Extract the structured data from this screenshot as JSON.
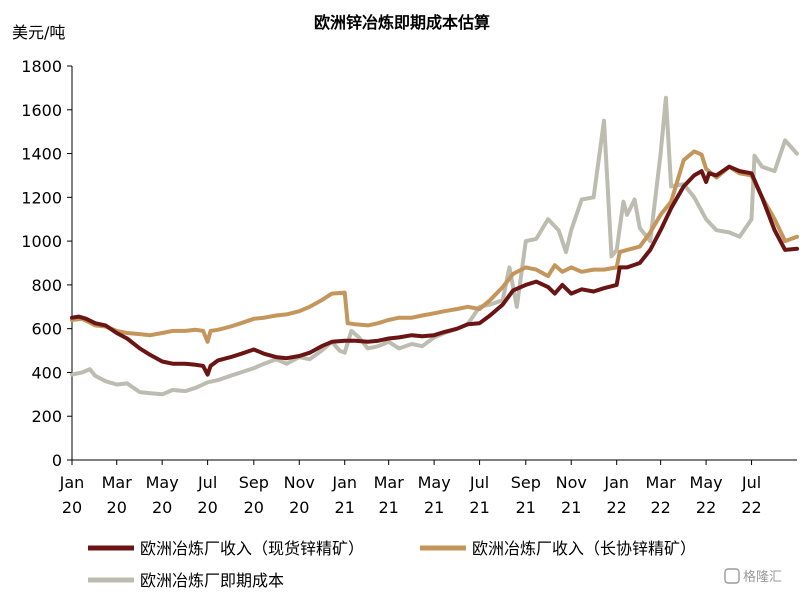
{
  "chart_data": {
    "type": "line",
    "title": "欧洲锌冶炼即期成本估算",
    "ylabel": "美元/吨",
    "ylim": [
      0,
      1800
    ],
    "yticks": [
      0,
      200,
      400,
      600,
      800,
      1000,
      1200,
      1400,
      1600,
      1800
    ],
    "xlim": [
      "2020-01-01",
      "2022-08-31"
    ],
    "xticks": [
      {
        "date": "2020-01-01",
        "month": "Jan",
        "year": "20"
      },
      {
        "date": "2020-03-01",
        "month": "Mar",
        "year": "20"
      },
      {
        "date": "2020-05-01",
        "month": "May",
        "year": "20"
      },
      {
        "date": "2020-07-01",
        "month": "Jul",
        "year": "20"
      },
      {
        "date": "2020-09-01",
        "month": "Sep",
        "year": "20"
      },
      {
        "date": "2020-11-01",
        "month": "Nov",
        "year": "20"
      },
      {
        "date": "2021-01-01",
        "month": "Jan",
        "year": "21"
      },
      {
        "date": "2021-03-01",
        "month": "Mar",
        "year": "21"
      },
      {
        "date": "2021-05-01",
        "month": "May",
        "year": "21"
      },
      {
        "date": "2021-07-01",
        "month": "Jul",
        "year": "21"
      },
      {
        "date": "2021-09-01",
        "month": "Sep",
        "year": "21"
      },
      {
        "date": "2021-11-01",
        "month": "Nov",
        "year": "21"
      },
      {
        "date": "2022-01-01",
        "month": "Jan",
        "year": "22"
      },
      {
        "date": "2022-03-01",
        "month": "Mar",
        "year": "22"
      },
      {
        "date": "2022-05-01",
        "month": "May",
        "year": "22"
      },
      {
        "date": "2022-07-01",
        "month": "Jul",
        "year": "22"
      }
    ],
    "grid": false,
    "legend_position": "bottom",
    "series": [
      {
        "name": "欧洲冶炼厂收入（现货锌精矿）",
        "color": "#6b1414",
        "points": [
          [
            "2020-01-01",
            650
          ],
          [
            "2020-01-10",
            655
          ],
          [
            "2020-01-20",
            645
          ],
          [
            "2020-02-01",
            625
          ],
          [
            "2020-02-15",
            615
          ],
          [
            "2020-03-01",
            580
          ],
          [
            "2020-03-15",
            555
          ],
          [
            "2020-04-01",
            510
          ],
          [
            "2020-04-15",
            480
          ],
          [
            "2020-05-01",
            450
          ],
          [
            "2020-05-15",
            440
          ],
          [
            "2020-06-01",
            440
          ],
          [
            "2020-06-15",
            435
          ],
          [
            "2020-06-25",
            430
          ],
          [
            "2020-07-01",
            390
          ],
          [
            "2020-07-05",
            430
          ],
          [
            "2020-07-15",
            455
          ],
          [
            "2020-08-01",
            470
          ],
          [
            "2020-08-15",
            485
          ],
          [
            "2020-09-01",
            505
          ],
          [
            "2020-09-15",
            485
          ],
          [
            "2020-10-01",
            470
          ],
          [
            "2020-10-15",
            465
          ],
          [
            "2020-11-01",
            475
          ],
          [
            "2020-11-15",
            490
          ],
          [
            "2020-12-01",
            520
          ],
          [
            "2020-12-15",
            540
          ],
          [
            "2021-01-01",
            545
          ],
          [
            "2021-01-15",
            545
          ],
          [
            "2021-02-01",
            540
          ],
          [
            "2021-02-15",
            545
          ],
          [
            "2021-03-01",
            555
          ],
          [
            "2021-03-15",
            560
          ],
          [
            "2021-04-01",
            570
          ],
          [
            "2021-04-15",
            565
          ],
          [
            "2021-05-01",
            570
          ],
          [
            "2021-05-15",
            585
          ],
          [
            "2021-06-01",
            600
          ],
          [
            "2021-06-15",
            620
          ],
          [
            "2021-07-01",
            625
          ],
          [
            "2021-07-15",
            660
          ],
          [
            "2021-08-01",
            710
          ],
          [
            "2021-08-15",
            775
          ],
          [
            "2021-09-01",
            800
          ],
          [
            "2021-09-15",
            815
          ],
          [
            "2021-10-01",
            790
          ],
          [
            "2021-10-10",
            760
          ],
          [
            "2021-10-20",
            800
          ],
          [
            "2021-11-01",
            760
          ],
          [
            "2021-11-15",
            780
          ],
          [
            "2021-12-01",
            770
          ],
          [
            "2021-12-15",
            785
          ],
          [
            "2022-01-01",
            800
          ],
          [
            "2022-01-05",
            880
          ],
          [
            "2022-01-15",
            880
          ],
          [
            "2022-02-01",
            900
          ],
          [
            "2022-02-15",
            960
          ],
          [
            "2022-03-01",
            1050
          ],
          [
            "2022-03-15",
            1150
          ],
          [
            "2022-04-01",
            1250
          ],
          [
            "2022-04-15",
            1300
          ],
          [
            "2022-04-25",
            1320
          ],
          [
            "2022-05-01",
            1270
          ],
          [
            "2022-05-05",
            1310
          ],
          [
            "2022-05-15",
            1300
          ],
          [
            "2022-06-01",
            1340
          ],
          [
            "2022-06-15",
            1320
          ],
          [
            "2022-07-01",
            1310
          ],
          [
            "2022-07-15",
            1200
          ],
          [
            "2022-08-01",
            1050
          ],
          [
            "2022-08-15",
            960
          ],
          [
            "2022-08-31",
            965
          ]
        ]
      },
      {
        "name": "欧洲冶炼厂收入（长协锌精矿）",
        "color": "#c4965c",
        "points": [
          [
            "2020-01-01",
            640
          ],
          [
            "2020-01-15",
            645
          ],
          [
            "2020-02-01",
            615
          ],
          [
            "2020-02-15",
            610
          ],
          [
            "2020-03-01",
            590
          ],
          [
            "2020-03-15",
            580
          ],
          [
            "2020-04-01",
            575
          ],
          [
            "2020-04-15",
            570
          ],
          [
            "2020-05-01",
            580
          ],
          [
            "2020-05-15",
            590
          ],
          [
            "2020-06-01",
            590
          ],
          [
            "2020-06-15",
            595
          ],
          [
            "2020-06-25",
            590
          ],
          [
            "2020-07-01",
            540
          ],
          [
            "2020-07-05",
            590
          ],
          [
            "2020-07-15",
            595
          ],
          [
            "2020-08-01",
            610
          ],
          [
            "2020-08-15",
            625
          ],
          [
            "2020-09-01",
            645
          ],
          [
            "2020-09-15",
            650
          ],
          [
            "2020-10-01",
            660
          ],
          [
            "2020-10-15",
            665
          ],
          [
            "2020-11-01",
            680
          ],
          [
            "2020-11-15",
            700
          ],
          [
            "2020-12-01",
            730
          ],
          [
            "2020-12-15",
            760
          ],
          [
            "2021-01-01",
            765
          ],
          [
            "2021-01-05",
            625
          ],
          [
            "2021-01-15",
            620
          ],
          [
            "2021-02-01",
            615
          ],
          [
            "2021-02-15",
            625
          ],
          [
            "2021-03-01",
            640
          ],
          [
            "2021-03-15",
            650
          ],
          [
            "2021-04-01",
            650
          ],
          [
            "2021-04-15",
            660
          ],
          [
            "2021-05-01",
            670
          ],
          [
            "2021-05-15",
            680
          ],
          [
            "2021-06-01",
            690
          ],
          [
            "2021-06-15",
            700
          ],
          [
            "2021-07-01",
            690
          ],
          [
            "2021-07-15",
            730
          ],
          [
            "2021-08-01",
            790
          ],
          [
            "2021-08-15",
            850
          ],
          [
            "2021-09-01",
            880
          ],
          [
            "2021-09-15",
            870
          ],
          [
            "2021-10-01",
            840
          ],
          [
            "2021-10-10",
            890
          ],
          [
            "2021-10-20",
            860
          ],
          [
            "2021-11-01",
            880
          ],
          [
            "2021-11-15",
            860
          ],
          [
            "2021-12-01",
            870
          ],
          [
            "2021-12-15",
            870
          ],
          [
            "2022-01-01",
            880
          ],
          [
            "2022-01-05",
            950
          ],
          [
            "2022-01-15",
            960
          ],
          [
            "2022-02-01",
            975
          ],
          [
            "2022-02-15",
            1040
          ],
          [
            "2022-03-01",
            1120
          ],
          [
            "2022-03-15",
            1180
          ],
          [
            "2022-04-01",
            1370
          ],
          [
            "2022-04-15",
            1410
          ],
          [
            "2022-04-25",
            1395
          ],
          [
            "2022-05-01",
            1330
          ],
          [
            "2022-05-15",
            1290
          ],
          [
            "2022-06-01",
            1340
          ],
          [
            "2022-06-15",
            1310
          ],
          [
            "2022-07-01",
            1300
          ],
          [
            "2022-07-15",
            1200
          ],
          [
            "2022-08-01",
            1100
          ],
          [
            "2022-08-15",
            1000
          ],
          [
            "2022-08-31",
            1020
          ]
        ]
      },
      {
        "name": "欧洲冶炼厂即期成本",
        "color": "#bcbcb0",
        "points": [
          [
            "2020-01-01",
            390
          ],
          [
            "2020-01-15",
            400
          ],
          [
            "2020-01-25",
            415
          ],
          [
            "2020-02-01",
            385
          ],
          [
            "2020-02-15",
            360
          ],
          [
            "2020-03-01",
            345
          ],
          [
            "2020-03-15",
            350
          ],
          [
            "2020-04-01",
            310
          ],
          [
            "2020-04-15",
            305
          ],
          [
            "2020-05-01",
            300
          ],
          [
            "2020-05-15",
            320
          ],
          [
            "2020-06-01",
            315
          ],
          [
            "2020-06-15",
            330
          ],
          [
            "2020-07-01",
            355
          ],
          [
            "2020-07-15",
            365
          ],
          [
            "2020-08-01",
            385
          ],
          [
            "2020-08-15",
            400
          ],
          [
            "2020-09-01",
            420
          ],
          [
            "2020-09-15",
            440
          ],
          [
            "2020-10-01",
            460
          ],
          [
            "2020-10-15",
            440
          ],
          [
            "2020-11-01",
            470
          ],
          [
            "2020-11-15",
            460
          ],
          [
            "2020-12-01",
            500
          ],
          [
            "2020-12-15",
            540
          ],
          [
            "2020-12-25",
            500
          ],
          [
            "2021-01-01",
            490
          ],
          [
            "2021-01-10",
            590
          ],
          [
            "2021-01-20",
            560
          ],
          [
            "2021-02-01",
            510
          ],
          [
            "2021-02-15",
            520
          ],
          [
            "2021-03-01",
            540
          ],
          [
            "2021-03-15",
            510
          ],
          [
            "2021-04-01",
            530
          ],
          [
            "2021-04-15",
            520
          ],
          [
            "2021-05-01",
            560
          ],
          [
            "2021-05-15",
            580
          ],
          [
            "2021-06-01",
            600
          ],
          [
            "2021-06-15",
            620
          ],
          [
            "2021-07-01",
            700
          ],
          [
            "2021-07-15",
            710
          ],
          [
            "2021-08-01",
            730
          ],
          [
            "2021-08-10",
            880
          ],
          [
            "2021-08-20",
            700
          ],
          [
            "2021-09-01",
            1000
          ],
          [
            "2021-09-15",
            1010
          ],
          [
            "2021-10-01",
            1100
          ],
          [
            "2021-10-15",
            1050
          ],
          [
            "2021-10-25",
            950
          ],
          [
            "2021-11-01",
            1050
          ],
          [
            "2021-11-15",
            1190
          ],
          [
            "2021-12-01",
            1200
          ],
          [
            "2021-12-15",
            1550
          ],
          [
            "2021-12-25",
            930
          ],
          [
            "2022-01-01",
            960
          ],
          [
            "2022-01-10",
            1180
          ],
          [
            "2022-01-15",
            1120
          ],
          [
            "2022-01-25",
            1190
          ],
          [
            "2022-02-01",
            1060
          ],
          [
            "2022-02-15",
            1000
          ],
          [
            "2022-03-01",
            1400
          ],
          [
            "2022-03-08",
            1655
          ],
          [
            "2022-03-15",
            1250
          ],
          [
            "2022-04-01",
            1260
          ],
          [
            "2022-04-15",
            1200
          ],
          [
            "2022-05-01",
            1100
          ],
          [
            "2022-05-15",
            1050
          ],
          [
            "2022-06-01",
            1040
          ],
          [
            "2022-06-15",
            1020
          ],
          [
            "2022-07-01",
            1100
          ],
          [
            "2022-07-05",
            1390
          ],
          [
            "2022-07-15",
            1340
          ],
          [
            "2022-08-01",
            1320
          ],
          [
            "2022-08-15",
            1460
          ],
          [
            "2022-08-31",
            1400
          ]
        ]
      }
    ]
  },
  "watermark": "格隆汇"
}
